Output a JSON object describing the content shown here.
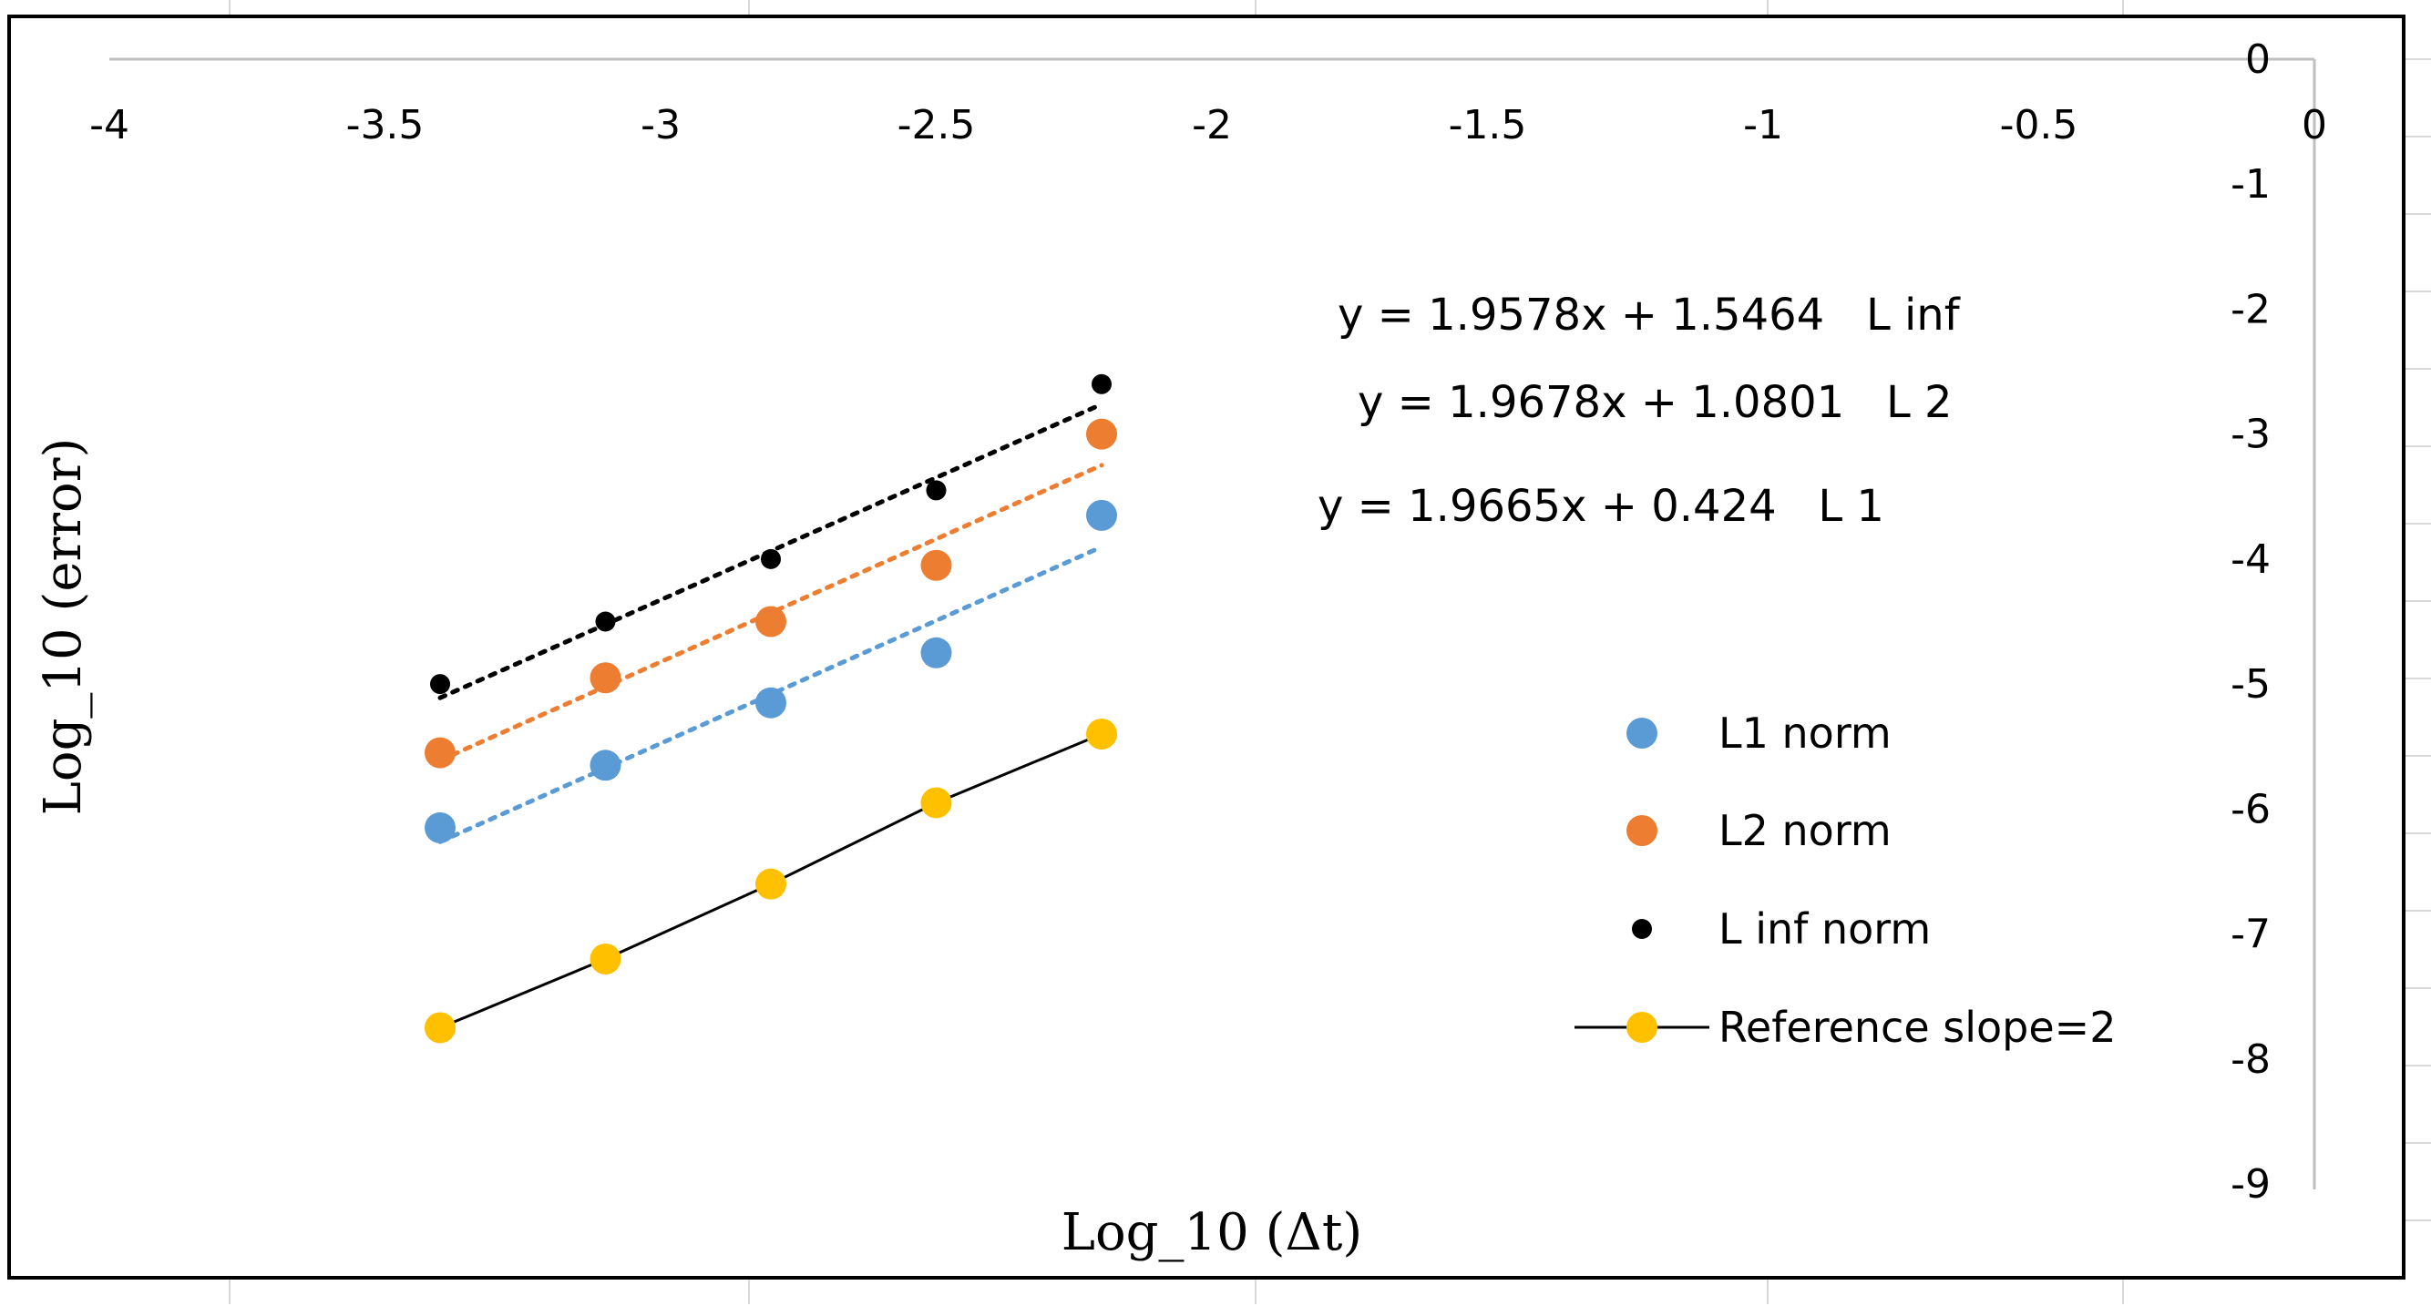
{
  "chart_data": {
    "type": "scatter",
    "xlabel": "Log_10 (Δt)",
    "ylabel": "Log_10 (error)",
    "xlim": [
      -4,
      0
    ],
    "ylim": [
      -9,
      0
    ],
    "x_ticks": [
      "-4",
      "-3.5",
      "-3",
      "-2.5",
      "-2",
      "-1.5",
      "-1",
      "-0.5",
      "0"
    ],
    "y_ticks": [
      "0",
      "-1",
      "-2",
      "-3",
      "-4",
      "-5",
      "-6",
      "-7",
      "-8",
      "-9"
    ],
    "x_tick_values": [
      -4,
      -3.5,
      -3,
      -2.5,
      -2,
      -1.5,
      -1,
      -0.5,
      0
    ],
    "y_tick_values": [
      0,
      -1,
      -2,
      -3,
      -4,
      -5,
      -6,
      -7,
      -8,
      -9
    ],
    "grid": false,
    "legend_position": "right",
    "series": [
      {
        "name": "L1 norm",
        "color": "#5B9BD5",
        "marker": "circle",
        "x": [
          -3.4,
          -3.1,
          -2.8,
          -2.5,
          -2.2
        ],
        "y": [
          -6.15,
          -5.65,
          -5.15,
          -4.75,
          -3.65
        ],
        "trendline": {
          "slope": 1.9665,
          "intercept": 0.424,
          "style": "dotted"
        }
      },
      {
        "name": "L2 norm",
        "color": "#ED7D31",
        "marker": "circle",
        "x": [
          -3.4,
          -3.1,
          -2.8,
          -2.5,
          -2.2
        ],
        "y": [
          -5.55,
          -4.95,
          -4.5,
          -4.05,
          -3.0
        ],
        "trendline": {
          "slope": 1.9678,
          "intercept": 1.0801,
          "style": "dotted"
        }
      },
      {
        "name": "L inf norm",
        "color": "#000000",
        "marker": "small-circle",
        "x": [
          -3.4,
          -3.1,
          -2.8,
          -2.5,
          -2.2
        ],
        "y": [
          -5.0,
          -4.5,
          -4.0,
          -3.45,
          -2.6
        ],
        "trendline": {
          "slope": 1.9578,
          "intercept": 1.5464,
          "style": "dotted"
        }
      },
      {
        "name": "Reference slope=2",
        "color": "#FFC000",
        "line_color": "#000000",
        "marker": "circle",
        "x": [
          -3.4,
          -3.1,
          -2.8,
          -2.5,
          -2.2
        ],
        "y": [
          -7.75,
          -7.2,
          -6.6,
          -5.95,
          -5.4
        ]
      }
    ],
    "annotations": [
      {
        "text": "y = 1.9578x + 1.5464   L inf"
      },
      {
        "text": "y = 1.9678x + 1.0801   L 2"
      },
      {
        "text": "y = 1.9665x + 0.424   L 1"
      }
    ]
  }
}
